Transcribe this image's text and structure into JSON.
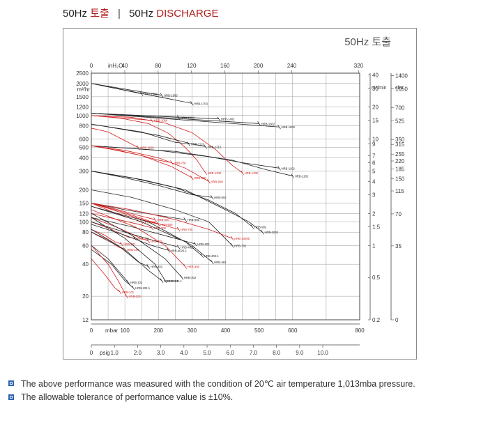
{
  "heading": {
    "freq": "50Hz",
    "korean": "토출",
    "freq2": "50Hz",
    "english": "DISCHARGE"
  },
  "chart_title": "50Hz 토출",
  "notes": [
    "The above performance was measured with the condition of 20℃ air temperature 1,013mba pressure.",
    "The allowable tolerance of performance value is ±10%."
  ],
  "colors": {
    "black": "#222222",
    "red": "#d21e1e",
    "bullet": "#2d62b3"
  },
  "chart_data": {
    "type": "line",
    "x_axis": {
      "label": "mbar",
      "ticks": [
        0,
        100,
        200,
        300,
        400,
        500,
        600,
        800
      ],
      "range": [
        0,
        800
      ]
    },
    "x_axis_top": {
      "label": "inH₂O",
      "ticks": [
        0,
        40,
        80,
        120,
        160,
        200,
        240,
        320
      ]
    },
    "x_axis_psig": {
      "label": "psig",
      "ticks": [
        "0",
        "1.0",
        "2.0",
        "3.0",
        "4.0",
        "5.0",
        "6.0",
        "7.0",
        "8.0",
        "9.0",
        "10.0"
      ]
    },
    "y_axis_left": {
      "label": "m³/hr",
      "ticks": [
        12,
        20,
        40,
        60,
        80,
        100,
        120,
        150,
        200,
        300,
        400,
        500,
        600,
        800,
        1000,
        1200,
        1500,
        2000,
        2500
      ],
      "scale": "log"
    },
    "y_axis_mid": {
      "label": "m³/min",
      "ticks": [
        "0.2",
        "0.5",
        "1",
        "1.5",
        "2",
        "3",
        "4",
        "5",
        "6",
        "7",
        "9",
        "10",
        "15",
        "20",
        "30",
        "40"
      ]
    },
    "y_axis_right": {
      "label": "cfm",
      "ticks": [
        "0",
        "35",
        "70",
        "115",
        "150",
        "185",
        "220",
        "255",
        "315",
        "350",
        "525",
        "700",
        "1050",
        "1400"
      ]
    },
    "series": [
      {
        "name": "HRB-1503",
        "color": "black",
        "points": [
          [
            0,
            2000
          ],
          [
            150,
            1600
          ]
        ]
      },
      {
        "name": "HRB-1603",
        "color": "black",
        "points": [
          [
            0,
            2000
          ],
          [
            210,
            1550
          ]
        ]
      },
      {
        "name": "HRB-1703",
        "color": "black",
        "points": [
          [
            0,
            2000
          ],
          [
            300,
            1300
          ]
        ]
      },
      {
        "name": "HRB-1302",
        "color": "black",
        "points": [
          [
            0,
            1050
          ],
          [
            260,
            960
          ]
        ]
      },
      {
        "name": "HRB-1402",
        "color": "black",
        "points": [
          [
            0,
            1050
          ],
          [
            380,
            930
          ]
        ]
      },
      {
        "name": "HRB-1502",
        "color": "black",
        "points": [
          [
            0,
            1050
          ],
          [
            500,
            840
          ]
        ]
      },
      {
        "name": "HRB-1602",
        "color": "black",
        "points": [
          [
            0,
            1050
          ],
          [
            560,
            780
          ]
        ]
      },
      {
        "name": "HRB-1000",
        "color": "red",
        "points": [
          [
            0,
            1000
          ],
          [
            180,
            900
          ]
        ]
      },
      {
        "name": "HRB-1200",
        "color": "red",
        "points": [
          [
            0,
            1000
          ],
          [
            90,
            940
          ],
          [
            170,
            840
          ],
          [
            230,
            680
          ],
          [
            280,
            500
          ],
          [
            315,
            380
          ],
          [
            340,
            290
          ]
        ]
      },
      {
        "name": "HRB-1300",
        "color": "red",
        "points": [
          [
            0,
            1000
          ],
          [
            120,
            960
          ],
          [
            220,
            850
          ],
          [
            300,
            690
          ],
          [
            370,
            480
          ],
          [
            420,
            340
          ],
          [
            450,
            290
          ]
        ]
      },
      {
        "name": "HRB-1100",
        "color": "red",
        "points": [
          [
            0,
            760
          ],
          [
            50,
            700
          ],
          [
            100,
            580
          ],
          [
            140,
            500
          ]
        ]
      },
      {
        "name": "HRB-1112",
        "color": "black",
        "points": [
          [
            0,
            830
          ],
          [
            150,
            700
          ],
          [
            250,
            560
          ],
          [
            290,
            540
          ]
        ]
      },
      {
        "name": "HRB-1212",
        "color": "black",
        "points": [
          [
            0,
            830
          ],
          [
            200,
            650
          ],
          [
            300,
            540
          ],
          [
            340,
            510
          ]
        ]
      },
      {
        "name": "HRB-1102",
        "color": "black",
        "points": [
          [
            0,
            520
          ],
          [
            200,
            470
          ],
          [
            350,
            410
          ],
          [
            450,
            360
          ],
          [
            560,
            320
          ]
        ]
      },
      {
        "name": "HRB-1202",
        "color": "black",
        "points": [
          [
            0,
            520
          ],
          [
            250,
            460
          ],
          [
            420,
            380
          ],
          [
            520,
            310
          ],
          [
            600,
            270
          ]
        ]
      },
      {
        "name": "HRB-750",
        "color": "red",
        "points": [
          [
            0,
            520
          ],
          [
            80,
            470
          ],
          [
            150,
            420
          ],
          [
            200,
            380
          ],
          [
            240,
            360
          ]
        ]
      },
      {
        "name": "HRB-800",
        "color": "red",
        "points": [
          [
            0,
            520
          ],
          [
            60,
            480
          ],
          [
            150,
            420
          ],
          [
            240,
            330
          ],
          [
            300,
            260
          ]
        ]
      },
      {
        "name": "HRB-900",
        "color": "red",
        "points": [
          [
            0,
            520
          ],
          [
            100,
            470
          ],
          [
            200,
            400
          ],
          [
            280,
            320
          ],
          [
            350,
            240
          ]
        ]
      },
      {
        "name": "HRB-602",
        "color": "black",
        "points": [
          [
            0,
            300
          ],
          [
            100,
            260
          ],
          [
            200,
            220
          ],
          [
            300,
            180
          ],
          [
            360,
            170
          ]
        ]
      },
      {
        "name": "HRB-902",
        "color": "black",
        "points": [
          [
            0,
            300
          ],
          [
            120,
            260
          ],
          [
            250,
            210
          ],
          [
            350,
            160
          ],
          [
            430,
            120
          ],
          [
            480,
            90
          ]
        ]
      },
      {
        "name": "HRB-1002",
        "color": "black",
        "points": [
          [
            0,
            300
          ],
          [
            150,
            250
          ],
          [
            280,
            200
          ],
          [
            400,
            130
          ],
          [
            470,
            100
          ],
          [
            510,
            80
          ]
        ]
      },
      {
        "name": "HRB-502",
        "color": "black",
        "points": [
          [
            0,
            150
          ],
          [
            100,
            130
          ],
          [
            200,
            115
          ],
          [
            280,
            105
          ]
        ]
      },
      {
        "name": "HRB-702",
        "color": "black",
        "points": [
          [
            0,
            200
          ],
          [
            120,
            170
          ],
          [
            250,
            130
          ],
          [
            350,
            100
          ],
          [
            420,
            60
          ]
        ]
      },
      {
        "name": "HRB-500",
        "color": "red",
        "points": [
          [
            0,
            150
          ],
          [
            80,
            130
          ],
          [
            140,
            115
          ],
          [
            190,
            105
          ]
        ]
      },
      {
        "name": "HRB-510",
        "color": "red",
        "points": [
          [
            0,
            150
          ],
          [
            60,
            125
          ],
          [
            110,
            110
          ],
          [
            150,
            100
          ]
        ]
      },
      {
        "name": "HRB-600",
        "color": "red",
        "points": [
          [
            0,
            150
          ],
          [
            80,
            125
          ],
          [
            150,
            105
          ],
          [
            200,
            95
          ]
        ]
      },
      {
        "name": "HRB-700",
        "color": "red",
        "points": [
          [
            0,
            150
          ],
          [
            90,
            125
          ],
          [
            180,
            100
          ],
          [
            260,
            85
          ]
        ]
      },
      {
        "name": "HRB-1000b",
        "color": "red",
        "points": [
          [
            0,
            150
          ],
          [
            120,
            130
          ],
          [
            250,
            105
          ],
          [
            350,
            85
          ],
          [
            420,
            70
          ]
        ]
      },
      {
        "name": "HRB-300",
        "color": "red",
        "points": [
          [
            0,
            120
          ],
          [
            80,
            105
          ],
          [
            140,
            95
          ],
          [
            180,
            88
          ]
        ]
      },
      {
        "name": "HRB-301",
        "color": "red",
        "points": [
          [
            0,
            100
          ],
          [
            60,
            85
          ],
          [
            110,
            72
          ],
          [
            130,
            70
          ]
        ]
      },
      {
        "name": "HRB-401",
        "color": "red",
        "points": [
          [
            0,
            110
          ],
          [
            80,
            88
          ],
          [
            140,
            72
          ],
          [
            170,
            66
          ]
        ]
      },
      {
        "name": "HRB-201",
        "color": "red",
        "points": [
          [
            0,
            85
          ],
          [
            40,
            75
          ],
          [
            70,
            65
          ],
          [
            90,
            62
          ]
        ]
      },
      {
        "name": "HRB-200",
        "color": "red",
        "points": [
          [
            0,
            80
          ],
          [
            50,
            68
          ],
          [
            80,
            58
          ],
          [
            100,
            55
          ]
        ]
      },
      {
        "name": "HRB-402",
        "color": "black",
        "points": [
          [
            0,
            110
          ],
          [
            120,
            90
          ],
          [
            250,
            70
          ],
          [
            310,
            62
          ]
        ]
      },
      {
        "name": "HRB-4025",
        "color": "black",
        "points": [
          [
            0,
            100
          ],
          [
            100,
            80
          ],
          [
            200,
            65
          ],
          [
            260,
            58
          ]
        ]
      },
      {
        "name": "HRB-4025-1",
        "color": "black",
        "points": [
          [
            0,
            95
          ],
          [
            100,
            75
          ],
          [
            180,
            60
          ],
          [
            230,
            54
          ]
        ]
      },
      {
        "name": "HRB-402-1",
        "color": "black",
        "points": [
          [
            0,
            140
          ],
          [
            150,
            100
          ],
          [
            280,
            65
          ],
          [
            330,
            48
          ]
        ]
      },
      {
        "name": "HRB-462",
        "color": "black",
        "points": [
          [
            0,
            140
          ],
          [
            170,
            100
          ],
          [
            300,
            60
          ],
          [
            360,
            42
          ]
        ]
      },
      {
        "name": "HRB-202",
        "color": "black",
        "points": [
          [
            0,
            85
          ],
          [
            80,
            60
          ],
          [
            140,
            42
          ],
          [
            170,
            38
          ]
        ]
      },
      {
        "name": "HRB-202-1",
        "color": "black",
        "points": [
          [
            0,
            80
          ],
          [
            100,
            55
          ],
          [
            170,
            35
          ],
          [
            210,
            28
          ]
        ]
      },
      {
        "name": "HRB-302",
        "color": "black",
        "points": [
          [
            0,
            120
          ],
          [
            120,
            75
          ],
          [
            220,
            45
          ],
          [
            270,
            30
          ]
        ]
      },
      {
        "name": "HRB-302-1",
        "color": "black",
        "points": [
          [
            0,
            110
          ],
          [
            100,
            70
          ],
          [
            190,
            40
          ],
          [
            220,
            28
          ]
        ]
      },
      {
        "name": "HRB-400",
        "color": "red",
        "points": [
          [
            0,
            130
          ],
          [
            130,
            90
          ],
          [
            220,
            60
          ],
          [
            280,
            38
          ]
        ]
      },
      {
        "name": "HRB-102",
        "color": "black",
        "points": [
          [
            0,
            60
          ],
          [
            50,
            45
          ],
          [
            90,
            32
          ],
          [
            110,
            27
          ]
        ]
      },
      {
        "name": "HRB-102-1",
        "color": "black",
        "points": [
          [
            0,
            55
          ],
          [
            60,
            40
          ],
          [
            100,
            28
          ],
          [
            125,
            24
          ]
        ]
      },
      {
        "name": "HRB-101",
        "color": "red",
        "points": [
          [
            0,
            45
          ],
          [
            40,
            32
          ],
          [
            70,
            24
          ],
          [
            85,
            22
          ]
        ]
      },
      {
        "name": "HRB-100",
        "color": "red",
        "points": [
          [
            0,
            60
          ],
          [
            50,
            40
          ],
          [
            80,
            28
          ],
          [
            105,
            20
          ]
        ]
      }
    ],
    "grid": true
  }
}
